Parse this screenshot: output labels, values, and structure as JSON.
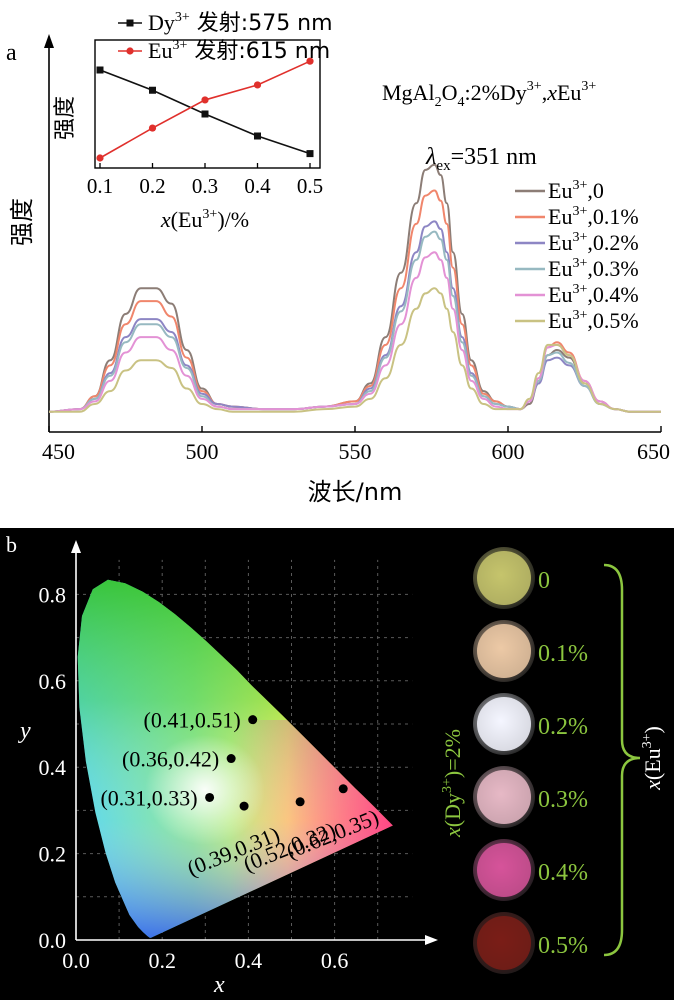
{
  "panel_a": {
    "panel_label": "a",
    "y_label": "强度",
    "compound": {
      "base": "MgAl",
      "sub1": "2",
      "mid": "O",
      "sub2": "4",
      "after": ":2%Dy",
      "sup1": "3+",
      "comma": ",",
      "x": "x",
      "eu": "Eu",
      "sup2": "3+"
    },
    "excitation": {
      "lambda": "λ",
      "sub": "ex",
      "value": "=351 nm"
    },
    "x_label": "波长/nm",
    "inset": {
      "y_label": "强度",
      "x_label": {
        "x": "x",
        "rest": "(Eu",
        "sup": "3+",
        "end": ")/%"
      },
      "legend": [
        {
          "ion": "Dy",
          "sup": "3+",
          "text": " 发射:575 nm"
        },
        {
          "ion": "Eu",
          "sup": "3+",
          "text": " 发射:615 nm"
        }
      ]
    },
    "legend": [
      {
        "ion": "Eu",
        "sup": "3+",
        "text": ",0"
      },
      {
        "ion": "Eu",
        "sup": "3+",
        "text": ",0.1%"
      },
      {
        "ion": "Eu",
        "sup": "3+",
        "text": ",0.2%"
      },
      {
        "ion": "Eu",
        "sup": "3+",
        "text": ",0.3%"
      },
      {
        "ion": "Eu",
        "sup": "3+",
        "text": ",0.4%"
      },
      {
        "ion": "Eu",
        "sup": "3+",
        "text": ",0.5%"
      }
    ]
  },
  "panel_b": {
    "panel_label": "b",
    "x_label": "x",
    "y_label": "y",
    "doping_label": {
      "x": "x",
      "rest": "(Dy",
      "sup": "3+",
      "end": ")=2%"
    },
    "bracket_label": {
      "x": "x",
      "rest": "(Eu",
      "sup": "3+",
      "end": ")"
    },
    "samples": [
      {
        "label": "0",
        "color": "#c5c46c"
      },
      {
        "label": "0.1%",
        "color": "#ecc9a6"
      },
      {
        "label": "0.2%",
        "color": "#f4f6ff"
      },
      {
        "label": "0.3%",
        "color": "#e6b8c6"
      },
      {
        "label": "0.4%",
        "color": "#d6549a"
      },
      {
        "label": "0.5%",
        "color": "#7a1d18"
      }
    ],
    "label_color": "#8cc63f"
  },
  "chart_data": [
    {
      "type": "line",
      "title": "",
      "xlabel": "波长/nm",
      "ylabel": "强度",
      "xlim": [
        450,
        650
      ],
      "xticks": [
        450,
        500,
        550,
        600,
        650
      ],
      "ylim": [
        0,
        1
      ],
      "grid": false,
      "legend_position": "right",
      "colors": [
        "#8c7d76",
        "#f0866c",
        "#8d86c4",
        "#97b9c1",
        "#e392d5",
        "#c9c283"
      ],
      "x": [
        450,
        460,
        465,
        470,
        475,
        480,
        485,
        490,
        495,
        500,
        505,
        510,
        520,
        530,
        540,
        550,
        555,
        560,
        565,
        570,
        573,
        576,
        578,
        580,
        582,
        585,
        588,
        592,
        596,
        600,
        604,
        607,
        610,
        613,
        616,
        620,
        625,
        630,
        635,
        640,
        645,
        650
      ],
      "series": [
        {
          "name": "Eu3+,0",
          "values": [
            0.04,
            0.05,
            0.1,
            0.24,
            0.42,
            0.52,
            0.52,
            0.46,
            0.28,
            0.13,
            0.07,
            0.06,
            0.05,
            0.05,
            0.06,
            0.08,
            0.15,
            0.33,
            0.58,
            0.85,
            0.98,
            1.0,
            0.96,
            0.85,
            0.66,
            0.42,
            0.24,
            0.12,
            0.08,
            0.06,
            0.05,
            0.07,
            0.15,
            0.26,
            0.28,
            0.25,
            0.15,
            0.08,
            0.05,
            0.04,
            0.04,
            0.04
          ]
        },
        {
          "name": "Eu3+,0.1%",
          "values": [
            0.04,
            0.05,
            0.1,
            0.22,
            0.38,
            0.47,
            0.47,
            0.41,
            0.25,
            0.12,
            0.07,
            0.06,
            0.05,
            0.05,
            0.06,
            0.08,
            0.14,
            0.3,
            0.52,
            0.77,
            0.88,
            0.9,
            0.86,
            0.77,
            0.6,
            0.38,
            0.22,
            0.11,
            0.08,
            0.06,
            0.05,
            0.08,
            0.17,
            0.29,
            0.31,
            0.27,
            0.16,
            0.08,
            0.05,
            0.04,
            0.04,
            0.04
          ]
        },
        {
          "name": "Eu3+,0.2%",
          "values": [
            0.04,
            0.05,
            0.09,
            0.19,
            0.33,
            0.4,
            0.4,
            0.35,
            0.22,
            0.11,
            0.07,
            0.06,
            0.05,
            0.05,
            0.06,
            0.07,
            0.13,
            0.26,
            0.45,
            0.66,
            0.76,
            0.78,
            0.75,
            0.66,
            0.52,
            0.33,
            0.19,
            0.1,
            0.07,
            0.06,
            0.05,
            0.08,
            0.15,
            0.24,
            0.25,
            0.22,
            0.14,
            0.07,
            0.05,
            0.04,
            0.04,
            0.04
          ]
        },
        {
          "name": "Eu3+,0.3%",
          "values": [
            0.04,
            0.05,
            0.09,
            0.18,
            0.31,
            0.38,
            0.38,
            0.33,
            0.21,
            0.1,
            0.06,
            0.05,
            0.05,
            0.05,
            0.06,
            0.07,
            0.12,
            0.25,
            0.43,
            0.63,
            0.72,
            0.74,
            0.71,
            0.63,
            0.49,
            0.31,
            0.18,
            0.1,
            0.07,
            0.06,
            0.05,
            0.08,
            0.16,
            0.26,
            0.27,
            0.23,
            0.14,
            0.07,
            0.05,
            0.04,
            0.04,
            0.04
          ]
        },
        {
          "name": "Eu3+,0.4%",
          "values": [
            0.04,
            0.05,
            0.08,
            0.16,
            0.27,
            0.33,
            0.33,
            0.28,
            0.18,
            0.09,
            0.06,
            0.05,
            0.05,
            0.05,
            0.06,
            0.07,
            0.11,
            0.22,
            0.38,
            0.56,
            0.64,
            0.66,
            0.63,
            0.56,
            0.44,
            0.28,
            0.16,
            0.09,
            0.06,
            0.05,
            0.05,
            0.08,
            0.17,
            0.29,
            0.3,
            0.26,
            0.16,
            0.08,
            0.05,
            0.04,
            0.04,
            0.04
          ]
        },
        {
          "name": "Eu3+,0.5%",
          "values": [
            0.04,
            0.04,
            0.07,
            0.12,
            0.2,
            0.24,
            0.24,
            0.21,
            0.13,
            0.07,
            0.05,
            0.04,
            0.04,
            0.04,
            0.05,
            0.06,
            0.09,
            0.17,
            0.3,
            0.44,
            0.5,
            0.52,
            0.5,
            0.44,
            0.35,
            0.22,
            0.13,
            0.07,
            0.05,
            0.05,
            0.05,
            0.09,
            0.19,
            0.3,
            0.3,
            0.26,
            0.15,
            0.07,
            0.05,
            0.04,
            0.04,
            0.04
          ]
        }
      ]
    },
    {
      "type": "line",
      "title": "",
      "xlabel": "x(Eu3+)/%",
      "ylabel": "强度",
      "xlim": [
        0.1,
        0.5
      ],
      "xticks": [
        0.1,
        0.2,
        0.3,
        0.4,
        0.5
      ],
      "ylim": [
        0,
        1
      ],
      "grid": false,
      "legend_position": "top",
      "x": [
        0.1,
        0.2,
        0.3,
        0.4,
        0.5
      ],
      "series": [
        {
          "name": "Dy3+ 发射:575 nm",
          "color": "#111111",
          "marker": "square",
          "values": [
            1.0,
            0.77,
            0.5,
            0.25,
            0.05
          ]
        },
        {
          "name": "Eu3+ 发射:615 nm",
          "color": "#e0302c",
          "marker": "circle",
          "values": [
            0.0,
            0.34,
            0.66,
            0.83,
            1.1
          ]
        }
      ]
    },
    {
      "type": "scatter",
      "title": "",
      "xlabel": "x",
      "ylabel": "y",
      "xlim": [
        0.0,
        0.8
      ],
      "ylim": [
        0.0,
        0.9
      ],
      "xticks": [
        0.0,
        0.2,
        0.4,
        0.6
      ],
      "yticks": [
        0.0,
        0.2,
        0.4,
        0.6,
        0.8
      ],
      "grid": true,
      "points": [
        {
          "x": 0.41,
          "y": 0.51,
          "label": "(0.41,0.51)"
        },
        {
          "x": 0.36,
          "y": 0.42,
          "label": "(0.36,0.42)"
        },
        {
          "x": 0.31,
          "y": 0.33,
          "label": "(0.31,0.33)"
        },
        {
          "x": 0.39,
          "y": 0.31,
          "label": "(0.39,0.31)"
        },
        {
          "x": 0.52,
          "y": 0.32,
          "label": "(0.52,0.32)"
        },
        {
          "x": 0.62,
          "y": 0.35,
          "label": "(0.62,0.35)"
        }
      ]
    }
  ]
}
